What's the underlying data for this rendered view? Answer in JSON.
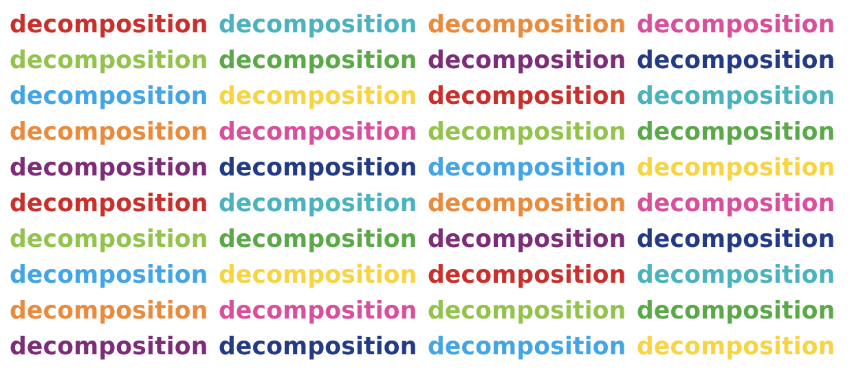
{
  "word": "decomposition",
  "palette": {
    "red": "#c9302c",
    "teal": "#4bb3bd",
    "orange": "#ea8a3c",
    "pink": "#d94f9b",
    "lime": "#93c34d",
    "green": "#5aa848",
    "purple": "#7d2c78",
    "navy": "#233a86",
    "sky": "#44a5e6",
    "yellow": "#f8d443"
  },
  "rows": [
    [
      "red",
      "teal",
      "orange",
      "pink"
    ],
    [
      "lime",
      "green",
      "purple",
      "navy"
    ],
    [
      "sky",
      "yellow",
      "red",
      "teal"
    ],
    [
      "orange",
      "pink",
      "lime",
      "green"
    ],
    [
      "purple",
      "navy",
      "sky",
      "yellow"
    ],
    [
      "red",
      "teal",
      "orange",
      "pink"
    ],
    [
      "lime",
      "green",
      "purple",
      "navy"
    ],
    [
      "sky",
      "yellow",
      "red",
      "teal"
    ],
    [
      "orange",
      "pink",
      "lime",
      "green"
    ],
    [
      "purple",
      "navy",
      "sky",
      "yellow"
    ]
  ]
}
